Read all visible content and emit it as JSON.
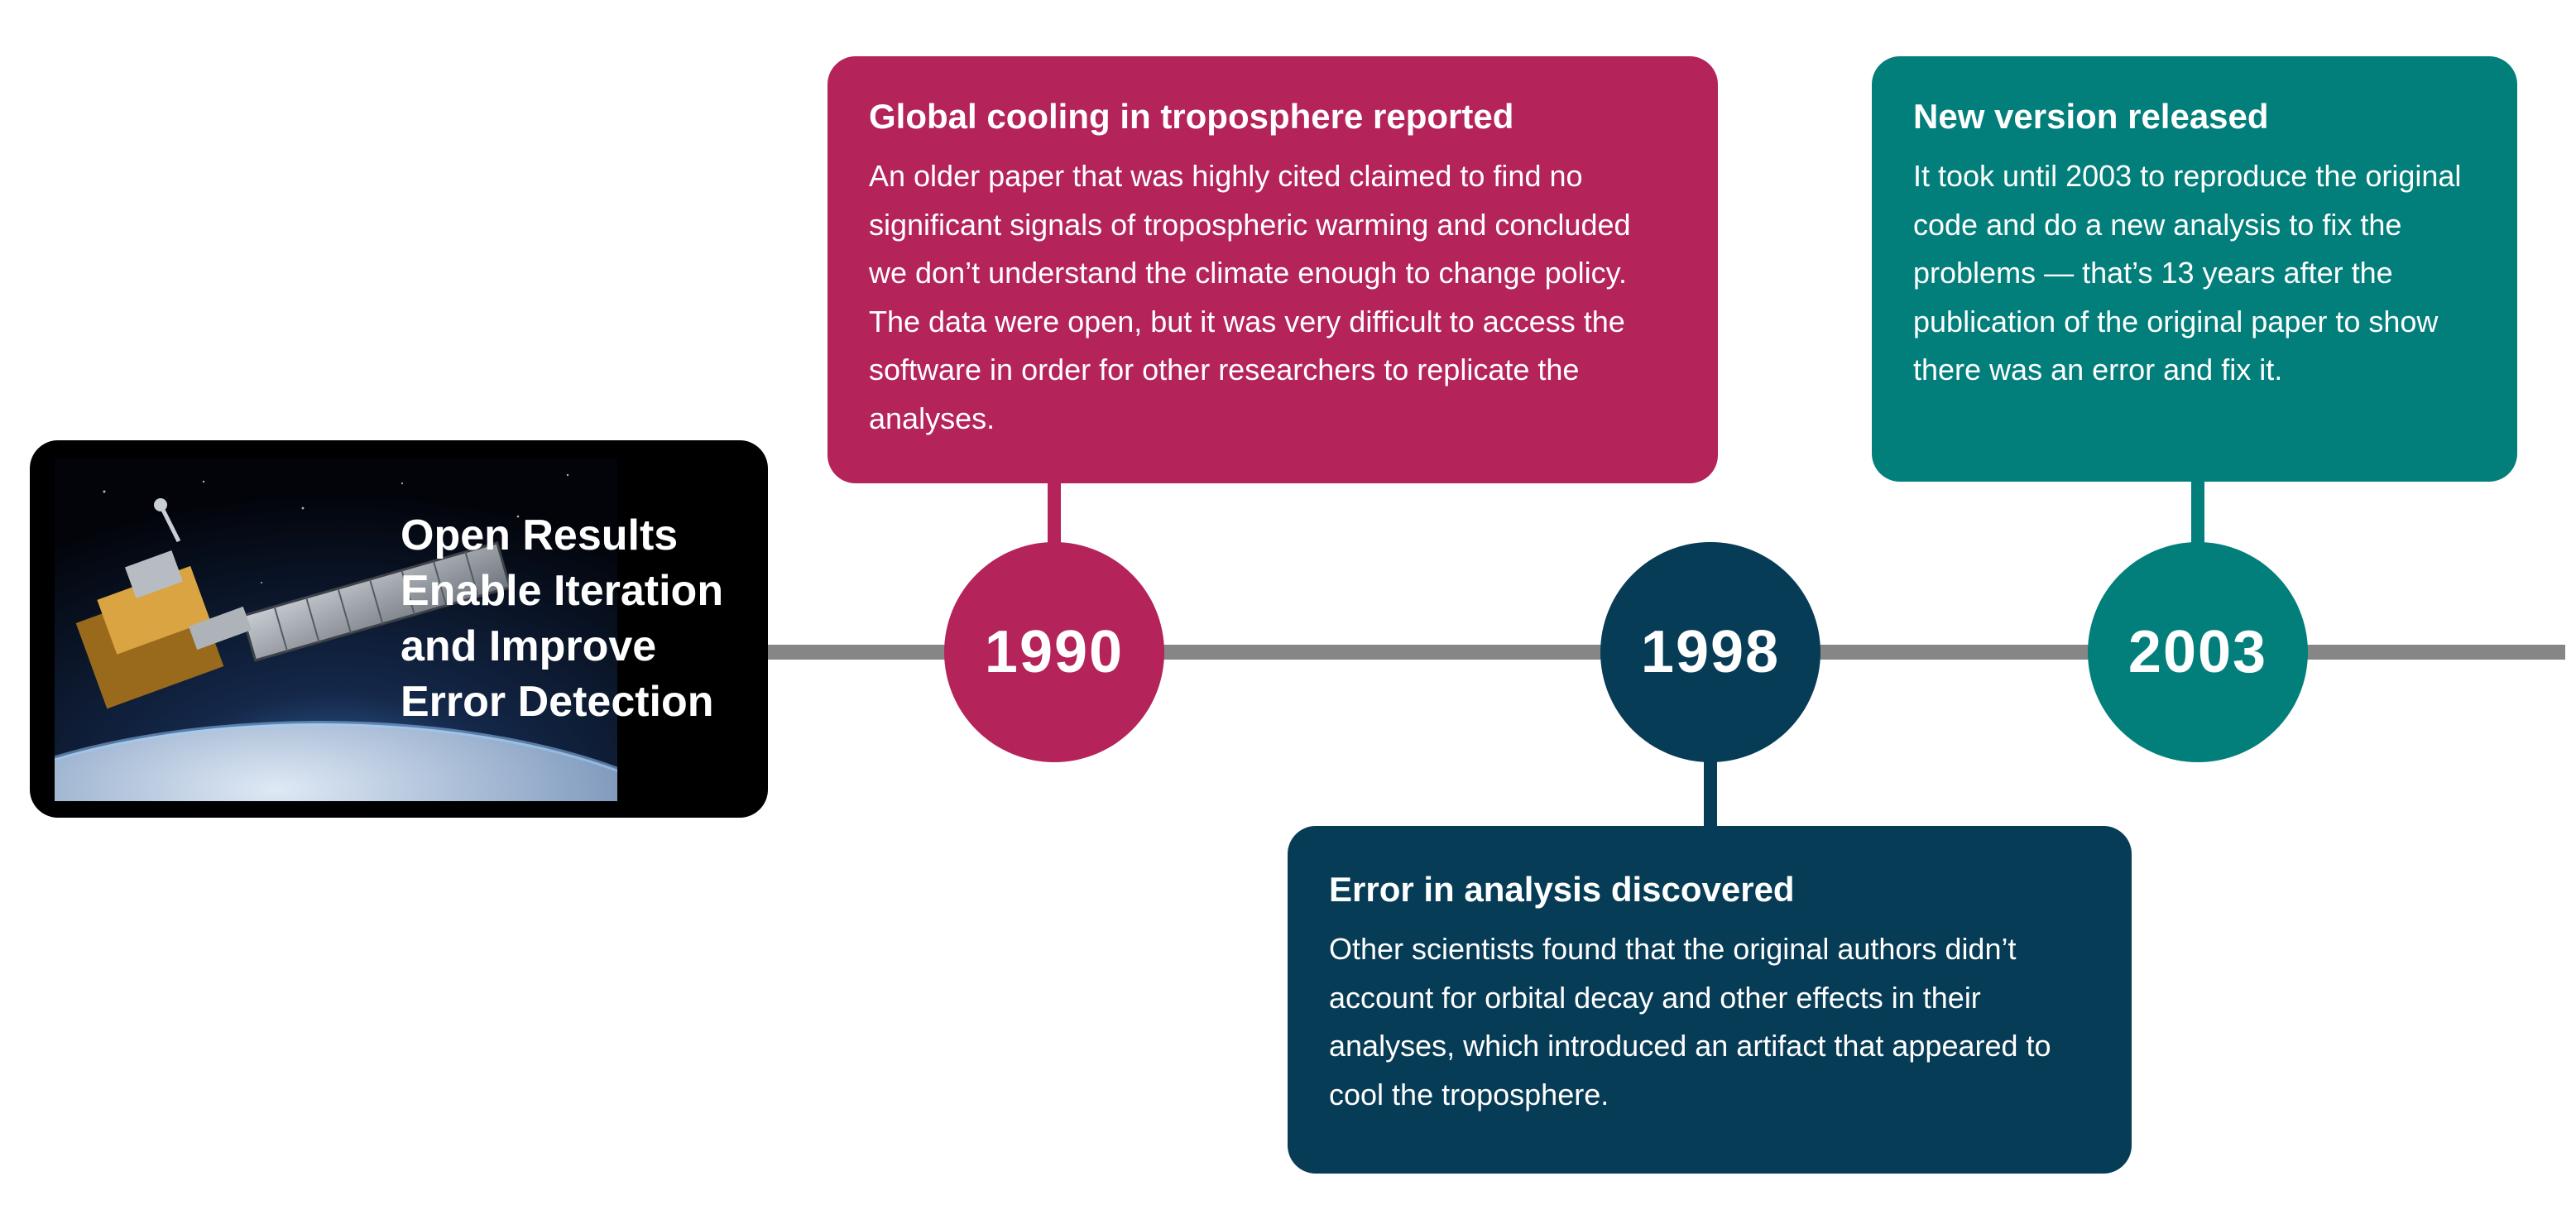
{
  "title_card": {
    "lines": [
      "Open Results",
      "Enable Iteration",
      "and Improve",
      "Error Detection"
    ],
    "image": "satellite-orbiting-earth"
  },
  "events": [
    {
      "year": "1990",
      "color": "#b4235a",
      "heading": "Global cooling in troposphere reported",
      "body": "An older paper that was highly cited claimed to find no significant signals of tropospheric warming and concluded we don’t understand the climate enough to change policy. The data were open, but it was very difficult to access the software in order for other researchers to replicate the analyses."
    },
    {
      "year": "1998",
      "color": "#073c56",
      "heading": "Error in analysis discovered",
      "body": "Other scientists found that the original authors didn’t account for orbital decay and other effects in their analyses, which introduced an artifact that appeared to cool the troposphere."
    },
    {
      "year": "2003",
      "color": "#037f7b",
      "heading": "New version released",
      "body": "It took until 2003 to reproduce the original code and do a new analysis to fix the problems — that’s 13 years after the publication of the original paper to show there was an error and fix it."
    }
  ]
}
